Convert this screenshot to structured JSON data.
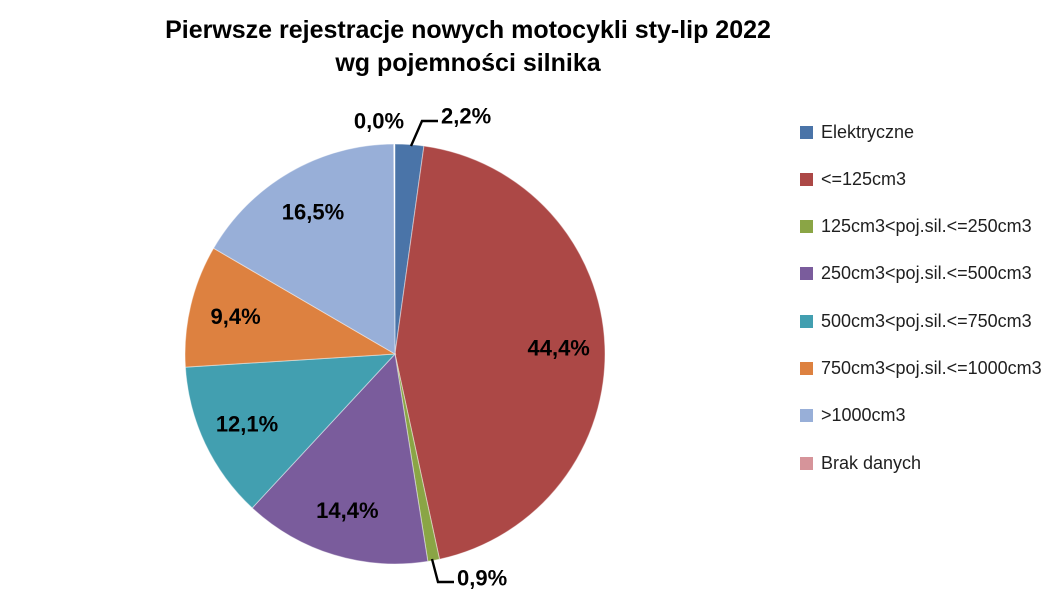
{
  "canvas": {
    "background": "#ffffff"
  },
  "title": {
    "line1": "Pierwsze rejestracje nowych motocykli sty-lip 2022",
    "line2": "wg pojemności silnika"
  },
  "chart_data": {
    "type": "pie",
    "title": "Pierwsze rejestracje nowych motocykli sty-lip 2022 wg pojemności silnika",
    "unit": "%",
    "decimal_separator": ",",
    "rotation": "starts at 12 o'clock, clockwise",
    "legend_position": "right",
    "slices": [
      {
        "label": "Elektryczne",
        "value": 2.2,
        "display": "2,2%",
        "color": "#4A74A8",
        "label_placement": "outside"
      },
      {
        "label": "<=125cm3",
        "value": 44.4,
        "display": "44,4%",
        "color": "#AC4846",
        "label_placement": "inside"
      },
      {
        "label": "125cm3<poj.sil.<=250cm3",
        "value": 0.9,
        "display": "0,9%",
        "color": "#8AA545",
        "label_placement": "outside"
      },
      {
        "label": "250cm3<poj.sil.<=500cm3",
        "value": 14.4,
        "display": "14,4%",
        "color": "#7A5C9C",
        "label_placement": "inside"
      },
      {
        "label": "500cm3<poj.sil.<=750cm3",
        "value": 12.1,
        "display": "12,1%",
        "color": "#429FB0",
        "label_placement": "inside"
      },
      {
        "label": "750cm3<poj.sil.<=1000cm3",
        "value": 9.4,
        "display": "9,4%",
        "color": "#DD8140",
        "label_placement": "inside"
      },
      {
        "label": ">1000cm3",
        "value": 16.5,
        "display": "16,5%",
        "color": "#98AFD8",
        "label_placement": "inside"
      },
      {
        "label": "Brak danych",
        "value": 0.0,
        "display": "0,0%",
        "color": "#D6949A",
        "label_placement": "outside"
      }
    ]
  }
}
